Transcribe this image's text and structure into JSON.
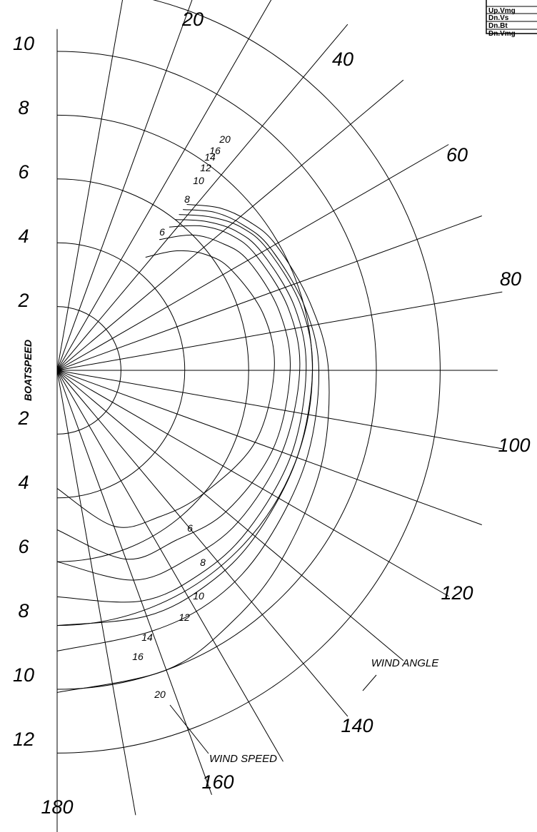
{
  "chart_data": {
    "type": "polar",
    "ylabel": "BOATSPEED",
    "radial_ticks": [
      2,
      4,
      6,
      8,
      10,
      12
    ],
    "speed_labels_upper": [
      "10",
      "8",
      "6",
      "4",
      "2"
    ],
    "speed_labels_lower": [
      "2",
      "4",
      "6",
      "8",
      "10",
      "12"
    ],
    "angle_ticks": [
      0,
      10,
      20,
      30,
      40,
      50,
      60,
      70,
      80,
      90,
      100,
      110,
      120,
      130,
      140,
      150,
      160,
      170,
      180
    ],
    "angle_labels": [
      "20",
      "40",
      "60",
      "80",
      "100",
      "120",
      "140",
      "160",
      "180"
    ],
    "wind_angle_label": "WIND ANGLE",
    "wind_speed_label": "WIND SPEED",
    "series": [
      {
        "name": "6",
        "angles": [
          38,
          45,
          52,
          60,
          75,
          90,
          110,
          130,
          145,
          160,
          180
        ],
        "speeds": [
          4.5,
          5.3,
          5.9,
          6.3,
          6.7,
          6.8,
          6.6,
          6.0,
          5.6,
          5.2,
          3.7
        ]
      },
      {
        "name": "8",
        "angles": [
          38,
          45,
          52,
          60,
          75,
          90,
          110,
          130,
          145,
          160,
          180
        ],
        "speeds": [
          5.2,
          6.0,
          6.5,
          6.9,
          7.2,
          7.3,
          7.2,
          6.9,
          6.5,
          6.3,
          5.0
        ]
      },
      {
        "name": "10",
        "angles": [
          38,
          45,
          52,
          60,
          75,
          90,
          110,
          130,
          145,
          160,
          180
        ],
        "speeds": [
          5.7,
          6.4,
          6.9,
          7.2,
          7.5,
          7.6,
          7.5,
          7.4,
          7.2,
          7.0,
          6.0
        ]
      },
      {
        "name": "12",
        "angles": [
          38,
          45,
          52,
          60,
          75,
          90,
          110,
          130,
          145,
          160,
          180
        ],
        "speeds": [
          6.0,
          6.6,
          7.1,
          7.4,
          7.7,
          7.8,
          7.8,
          7.8,
          7.8,
          7.7,
          7.1
        ]
      },
      {
        "name": "14",
        "angles": [
          38,
          45,
          52,
          60,
          75,
          90,
          110,
          130,
          145,
          160,
          180
        ],
        "speeds": [
          6.2,
          6.8,
          7.3,
          7.6,
          7.9,
          8.0,
          8.0,
          8.1,
          8.2,
          8.2,
          8.0
        ]
      },
      {
        "name": "16",
        "angles": [
          38,
          45,
          52,
          60,
          75,
          90,
          110,
          130,
          145,
          160,
          180
        ],
        "speeds": [
          6.4,
          7.0,
          7.4,
          7.7,
          8.0,
          8.2,
          8.3,
          8.5,
          8.7,
          8.7,
          8.8
        ]
      },
      {
        "name": "20",
        "angles": [
          38,
          45,
          52,
          60,
          75,
          90,
          110,
          130,
          145,
          160,
          180
        ],
        "speeds": [
          6.6,
          7.2,
          7.6,
          7.9,
          8.2,
          8.5,
          8.8,
          9.2,
          9.6,
          10.0,
          10.1
        ]
      }
    ]
  },
  "legend_table": {
    "rows": [
      "Up.Vmg",
      "Dn.Vs",
      "Dn.Bt",
      "Dn.Vmg"
    ]
  },
  "colors": {
    "line": "#000000",
    "background": "#ffffff"
  }
}
